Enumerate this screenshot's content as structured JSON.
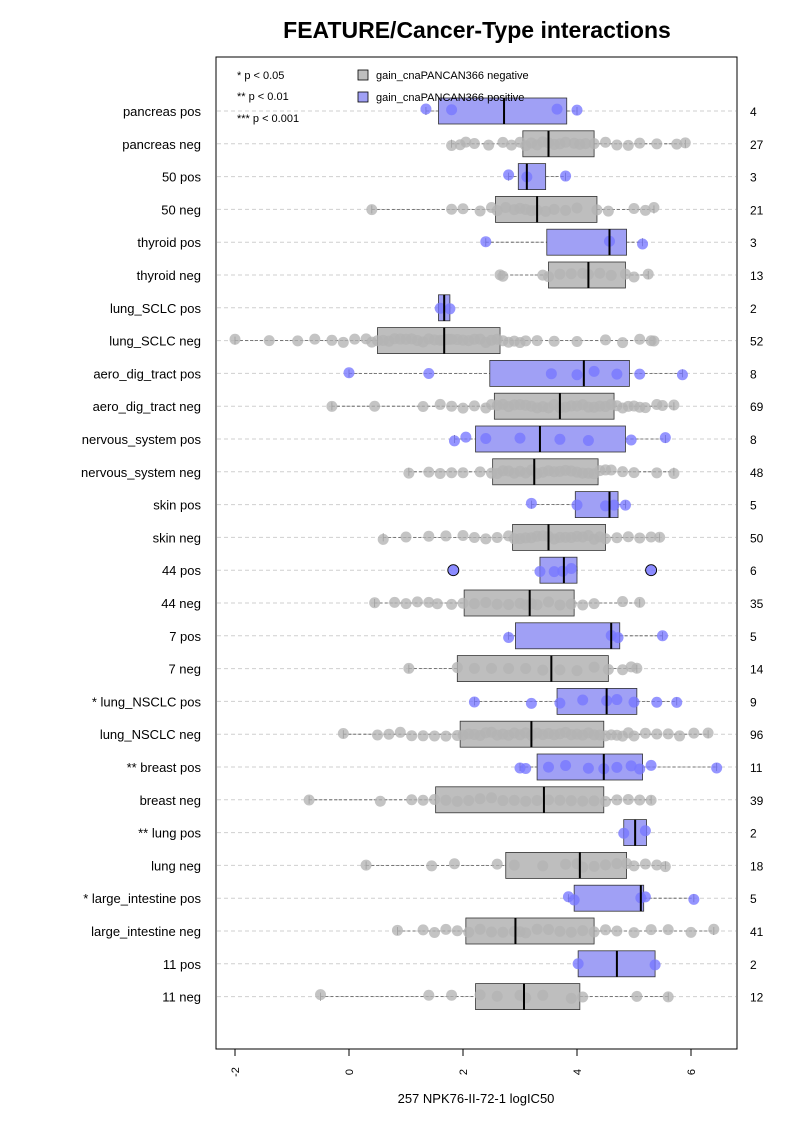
{
  "chart_data": {
    "type": "boxplot",
    "title": "FEATURE/Cancer-Type interactions",
    "xlabel": "257 NPK76-II-72-1 logIC50",
    "xlim": [
      -2.1,
      6.9
    ],
    "x_ticks": [
      -2,
      0,
      2,
      4,
      6
    ],
    "grid": "horizontal dashed",
    "legend_position": "top-left",
    "significance_legend": [
      "* p < 0.05",
      "** p < 0.01",
      "*** p < 0.001"
    ],
    "series": [
      {
        "name": "gain_cnaPANCAN366 negative",
        "color": "#bebebe",
        "point_color": "#b3b3b3"
      },
      {
        "name": "gain_cnaPANCAN366 positive",
        "color": "#a0a0f5",
        "point_color": "#7777ff"
      }
    ],
    "rows": [
      {
        "label": "pancreas pos",
        "n": "4",
        "group": "pos",
        "whisker": [
          1.35,
          4.0
        ],
        "box": [
          1.57,
          3.82
        ],
        "median": 2.72,
        "points": [
          1.35,
          1.8,
          3.65,
          4.0
        ],
        "outliers": []
      },
      {
        "label": "pancreas neg",
        "n": "27",
        "group": "neg",
        "whisker": [
          1.8,
          5.9
        ],
        "box": [
          3.05,
          4.3
        ],
        "median": 3.5,
        "points": [
          1.8,
          1.95,
          2.05,
          2.2,
          2.45,
          2.7,
          2.85,
          3.0,
          3.1,
          3.2,
          3.3,
          3.4,
          3.5,
          3.6,
          3.7,
          3.8,
          3.95,
          4.05,
          4.15,
          4.3,
          4.5,
          4.7,
          4.9,
          5.1,
          5.4,
          5.75,
          5.9
        ],
        "outliers": []
      },
      {
        "label": "50 pos",
        "n": "3",
        "group": "pos",
        "whisker": [
          2.8,
          3.8
        ],
        "box": [
          2.97,
          3.45
        ],
        "median": 3.12,
        "points": [
          2.8,
          3.12,
          3.8
        ],
        "outliers": []
      },
      {
        "label": "50 neg",
        "n": "21",
        "group": "neg",
        "whisker": [
          0.4,
          5.35
        ],
        "box": [
          2.57,
          4.35
        ],
        "median": 3.3,
        "points": [
          0.4,
          1.8,
          2.0,
          2.3,
          2.5,
          2.6,
          2.75,
          2.9,
          3.0,
          3.1,
          3.2,
          3.3,
          3.45,
          3.6,
          3.8,
          4.0,
          4.35,
          4.55,
          5.0,
          5.2,
          5.35
        ],
        "outliers": []
      },
      {
        "label": "thyroid pos",
        "n": "3",
        "group": "pos",
        "whisker": [
          2.4,
          5.15
        ],
        "box": [
          3.47,
          4.87
        ],
        "median": 4.57,
        "points": [
          2.4,
          4.57,
          5.15
        ],
        "outliers": []
      },
      {
        "label": "thyroid neg",
        "n": "13",
        "group": "neg",
        "whisker": [
          2.65,
          5.25
        ],
        "box": [
          3.5,
          4.85
        ],
        "median": 4.2,
        "points": [
          2.65,
          2.7,
          3.4,
          3.5,
          3.7,
          3.9,
          4.1,
          4.2,
          4.4,
          4.6,
          4.85,
          5.0,
          5.25
        ],
        "outliers": []
      },
      {
        "label": "lung_SCLC pos",
        "n": "2",
        "group": "pos",
        "whisker": [
          1.57,
          1.77
        ],
        "box": [
          1.57,
          1.77
        ],
        "median": 1.67,
        "points": [
          1.6,
          1.77
        ],
        "outliers": []
      },
      {
        "label": "lung_SCLC neg",
        "n": "52",
        "group": "neg",
        "whisker": [
          -2.0,
          5.35
        ],
        "box": [
          0.5,
          2.65
        ],
        "median": 1.67,
        "points": [
          -2.0,
          -1.4,
          -0.9,
          -0.6,
          -0.3,
          -0.1,
          0.1,
          0.3,
          0.4,
          0.5,
          0.6,
          0.7,
          0.8,
          0.9,
          1.0,
          1.1,
          1.2,
          1.3,
          1.4,
          1.5,
          1.6,
          1.65,
          1.7,
          1.75,
          1.8,
          1.9,
          2.0,
          2.1,
          2.2,
          2.3,
          2.4,
          2.5,
          2.6,
          2.7,
          2.8,
          2.9,
          3.0,
          3.1,
          3.3,
          3.6,
          4.0,
          4.5,
          4.8,
          5.1,
          5.3,
          5.35
        ],
        "outliers": []
      },
      {
        "label": "aero_dig_tract pos",
        "n": "8",
        "group": "pos",
        "whisker": [
          0.0,
          5.85
        ],
        "box": [
          2.47,
          4.92
        ],
        "median": 4.12,
        "points": [
          0.0,
          1.4,
          3.55,
          4.0,
          4.3,
          4.7,
          5.1,
          5.85
        ],
        "outliers": []
      },
      {
        "label": "aero_dig_tract neg",
        "n": "69",
        "group": "neg",
        "whisker": [
          -0.3,
          5.7
        ],
        "box": [
          2.55,
          4.65
        ],
        "median": 3.7,
        "points": [
          -0.3,
          0.45,
          1.3,
          1.6,
          1.8,
          2.0,
          2.2,
          2.4,
          2.5,
          2.6,
          2.7,
          2.8,
          2.9,
          3.0,
          3.1,
          3.2,
          3.3,
          3.4,
          3.5,
          3.6,
          3.7,
          3.8,
          3.9,
          4.0,
          4.1,
          4.2,
          4.3,
          4.4,
          4.5,
          4.6,
          4.7,
          4.8,
          4.9,
          5.0,
          5.1,
          5.2,
          5.4,
          5.5,
          5.7
        ],
        "outliers": []
      },
      {
        "label": "nervous_system pos",
        "n": "8",
        "group": "pos",
        "whisker": [
          1.85,
          5.55
        ],
        "box": [
          2.22,
          4.85
        ],
        "median": 3.35,
        "points": [
          1.85,
          2.05,
          2.4,
          3.0,
          3.7,
          4.2,
          4.95,
          5.55
        ],
        "outliers": []
      },
      {
        "label": "nervous_system neg",
        "n": "48",
        "group": "neg",
        "whisker": [
          1.05,
          5.7
        ],
        "box": [
          2.52,
          4.37
        ],
        "median": 3.25,
        "points": [
          1.05,
          1.4,
          1.6,
          1.8,
          2.0,
          2.3,
          2.5,
          2.6,
          2.7,
          2.8,
          2.9,
          3.0,
          3.1,
          3.2,
          3.3,
          3.4,
          3.5,
          3.6,
          3.7,
          3.8,
          3.9,
          4.0,
          4.1,
          4.2,
          4.3,
          4.4,
          4.5,
          4.6,
          4.8,
          5.0,
          5.4,
          5.7
        ],
        "outliers": []
      },
      {
        "label": "skin pos",
        "n": "5",
        "group": "pos",
        "whisker": [
          3.2,
          4.85
        ],
        "box": [
          3.97,
          4.72
        ],
        "median": 4.57,
        "points": [
          3.2,
          4.0,
          4.5,
          4.65,
          4.85
        ],
        "outliers": []
      },
      {
        "label": "skin neg",
        "n": "50",
        "group": "neg",
        "whisker": [
          0.6,
          5.45
        ],
        "box": [
          2.87,
          4.5
        ],
        "median": 3.5,
        "points": [
          0.6,
          1.0,
          1.4,
          1.7,
          2.0,
          2.2,
          2.4,
          2.6,
          2.8,
          2.9,
          3.0,
          3.1,
          3.2,
          3.3,
          3.4,
          3.5,
          3.6,
          3.7,
          3.8,
          3.9,
          4.0,
          4.1,
          4.2,
          4.3,
          4.4,
          4.5,
          4.7,
          4.9,
          5.1,
          5.3,
          5.45
        ],
        "outliers": []
      },
      {
        "label": "44 pos",
        "n": "6",
        "group": "pos",
        "whisker": [
          3.35,
          4.0
        ],
        "box": [
          3.35,
          4.0
        ],
        "median": 3.77,
        "points": [
          3.35,
          3.6,
          3.75,
          3.9
        ],
        "outliers": [
          1.83,
          5.3
        ]
      },
      {
        "label": "44 neg",
        "n": "35",
        "group": "neg",
        "whisker": [
          0.45,
          5.1
        ],
        "box": [
          2.02,
          3.95
        ],
        "median": 3.17,
        "points": [
          0.45,
          0.8,
          1.0,
          1.2,
          1.4,
          1.55,
          1.8,
          2.0,
          2.2,
          2.4,
          2.6,
          2.8,
          3.0,
          3.1,
          3.2,
          3.3,
          3.5,
          3.7,
          3.9,
          4.1,
          4.3,
          4.8,
          5.1
        ],
        "outliers": []
      },
      {
        "label": "7 pos",
        "n": "5",
        "group": "pos",
        "whisker": [
          2.8,
          5.5
        ],
        "box": [
          2.92,
          4.75
        ],
        "median": 4.6,
        "points": [
          2.8,
          4.6,
          4.72,
          5.5
        ],
        "outliers": []
      },
      {
        "label": "7 neg",
        "n": "14",
        "group": "neg",
        "whisker": [
          1.05,
          5.05
        ],
        "box": [
          1.9,
          4.55
        ],
        "median": 3.55,
        "points": [
          1.05,
          1.9,
          2.2,
          2.5,
          2.8,
          3.1,
          3.4,
          3.7,
          4.0,
          4.3,
          4.55,
          4.8,
          4.95,
          5.05
        ],
        "outliers": []
      },
      {
        "label": "* lung_NSCLC pos",
        "n": "9",
        "group": "pos",
        "whisker": [
          2.2,
          5.75
        ],
        "box": [
          3.65,
          5.05
        ],
        "median": 4.52,
        "points": [
          2.2,
          3.2,
          3.7,
          4.1,
          4.52,
          4.7,
          5.0,
          5.4,
          5.75
        ],
        "outliers": []
      },
      {
        "label": "lung_NSCLC neg",
        "n": "96",
        "group": "neg",
        "whisker": [
          -0.1,
          6.3
        ],
        "box": [
          1.95,
          4.47
        ],
        "median": 3.2,
        "points": [
          -0.1,
          0.5,
          0.7,
          0.9,
          1.1,
          1.3,
          1.5,
          1.7,
          1.9,
          2.0,
          2.1,
          2.2,
          2.3,
          2.4,
          2.5,
          2.6,
          2.7,
          2.8,
          2.9,
          3.0,
          3.1,
          3.2,
          3.3,
          3.4,
          3.5,
          3.6,
          3.7,
          3.8,
          3.9,
          4.0,
          4.1,
          4.2,
          4.3,
          4.4,
          4.5,
          4.6,
          4.7,
          4.8,
          4.9,
          5.0,
          5.2,
          5.4,
          5.6,
          5.8,
          6.05,
          6.3
        ],
        "outliers": []
      },
      {
        "label": "** breast pos",
        "n": "11",
        "group": "pos",
        "whisker": [
          3.0,
          6.45
        ],
        "box": [
          3.3,
          5.15
        ],
        "median": 4.47,
        "points": [
          3.0,
          3.1,
          3.5,
          3.8,
          4.2,
          4.47,
          4.7,
          4.95,
          5.1,
          5.3,
          6.45
        ],
        "outliers": []
      },
      {
        "label": "breast neg",
        "n": "39",
        "group": "neg",
        "whisker": [
          -0.7,
          5.3
        ],
        "box": [
          1.52,
          4.47
        ],
        "median": 3.42,
        "points": [
          -0.7,
          0.55,
          1.1,
          1.3,
          1.5,
          1.7,
          1.9,
          2.1,
          2.3,
          2.5,
          2.7,
          2.9,
          3.1,
          3.3,
          3.5,
          3.7,
          3.9,
          4.1,
          4.3,
          4.5,
          4.7,
          4.9,
          5.1,
          5.3
        ],
        "outliers": []
      },
      {
        "label": "** lung pos",
        "n": "2",
        "group": "pos",
        "whisker": [
          4.82,
          5.22
        ],
        "box": [
          4.82,
          5.22
        ],
        "median": 5.02,
        "points": [
          4.82,
          5.2
        ],
        "outliers": []
      },
      {
        "label": "lung neg",
        "n": "18",
        "group": "neg",
        "whisker": [
          0.3,
          5.55
        ],
        "box": [
          2.75,
          4.87
        ],
        "median": 4.05,
        "points": [
          0.3,
          1.45,
          1.85,
          2.6,
          2.9,
          3.4,
          3.8,
          4.0,
          4.1,
          4.3,
          4.5,
          4.7,
          4.87,
          5.0,
          5.2,
          5.4,
          5.55
        ],
        "outliers": []
      },
      {
        "label": "* large_intestine pos",
        "n": "5",
        "group": "pos",
        "whisker": [
          3.85,
          6.05
        ],
        "box": [
          3.95,
          5.17
        ],
        "median": 5.12,
        "points": [
          3.85,
          3.95,
          5.12,
          5.2,
          6.05
        ],
        "outliers": []
      },
      {
        "label": "large_intestine neg",
        "n": "41",
        "group": "neg",
        "whisker": [
          0.85,
          6.4
        ],
        "box": [
          2.05,
          4.3
        ],
        "median": 2.92,
        "points": [
          0.85,
          1.3,
          1.5,
          1.7,
          1.9,
          2.1,
          2.3,
          2.5,
          2.7,
          2.9,
          3.0,
          3.1,
          3.3,
          3.5,
          3.7,
          3.9,
          4.1,
          4.3,
          4.5,
          4.7,
          5.0,
          5.3,
          5.6,
          6.0,
          6.4
        ],
        "outliers": []
      },
      {
        "label": "11 pos",
        "n": "2",
        "group": "pos",
        "whisker": [
          4.02,
          5.37
        ],
        "box": [
          4.02,
          5.37
        ],
        "median": 4.7,
        "points": [
          4.02,
          5.37
        ],
        "outliers": []
      },
      {
        "label": "11 neg",
        "n": "12",
        "group": "neg",
        "whisker": [
          -0.5,
          5.6
        ],
        "box": [
          2.22,
          4.05
        ],
        "median": 3.07,
        "points": [
          -0.5,
          1.4,
          1.8,
          2.3,
          2.6,
          3.0,
          3.1,
          3.4,
          3.9,
          4.1,
          5.05,
          5.6
        ],
        "outliers": []
      }
    ]
  }
}
